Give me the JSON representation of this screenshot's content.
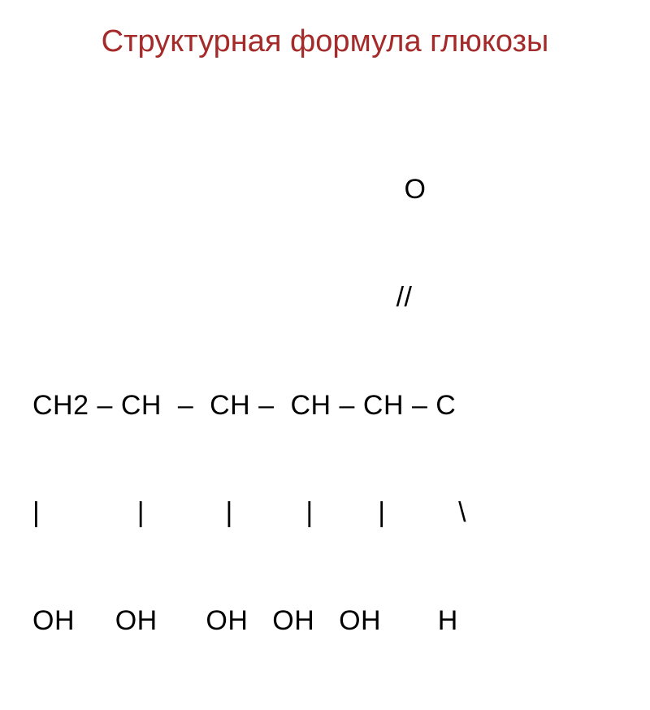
{
  "slide": {
    "title": "Структурная формула глюкозы",
    "title_color": "#a52a2a",
    "title_fontsize": 38,
    "formula_color": "#000000",
    "formula_fontsize": 34,
    "background_color": "#ffffff",
    "formula": {
      "line1": "                                              O",
      "line2": "                                             //",
      "line3": "CH2 – CH  –  CH –  CH – CH – C",
      "line4": "|            |          |         |        |         \\",
      "line5": "OH     OH      OH   OH   OH       H"
    }
  }
}
